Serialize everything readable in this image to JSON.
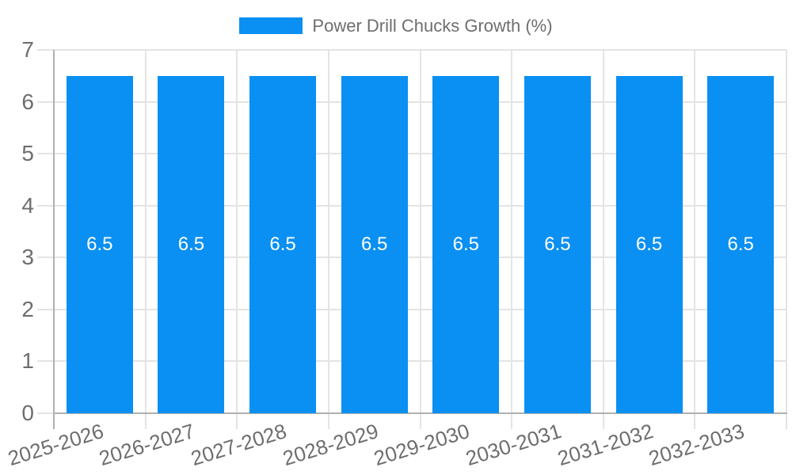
{
  "legend": {
    "label": "Power Drill Chucks Growth (%)",
    "swatch_color": "#0a90f2"
  },
  "chart_data": {
    "type": "bar",
    "title": "Power Drill Chucks Growth (%)",
    "categories": [
      "2025-2026",
      "2026-2027",
      "2027-2028",
      "2028-2029",
      "2029-2030",
      "2030-2031",
      "2031-2032",
      "2032-2033"
    ],
    "values": [
      6.5,
      6.5,
      6.5,
      6.5,
      6.5,
      6.5,
      6.5,
      6.5
    ],
    "bar_labels": [
      "6.5",
      "6.5",
      "6.5",
      "6.5",
      "6.5",
      "6.5",
      "6.5",
      "6.5"
    ],
    "xlabel": "",
    "ylabel": "",
    "ylim": [
      0,
      7
    ],
    "yticks": [
      0,
      1,
      2,
      3,
      4,
      5,
      6,
      7
    ],
    "grid": true,
    "legend_position": "top",
    "colors": {
      "bar": "#0a90f2",
      "bar_label_text": "#ffffff",
      "grid": "#e4e4e4",
      "axis": "#b0b0b0",
      "tick_text": "#6e6e6e",
      "legend_text": "#6e6e6e",
      "background": "#ffffff"
    }
  }
}
